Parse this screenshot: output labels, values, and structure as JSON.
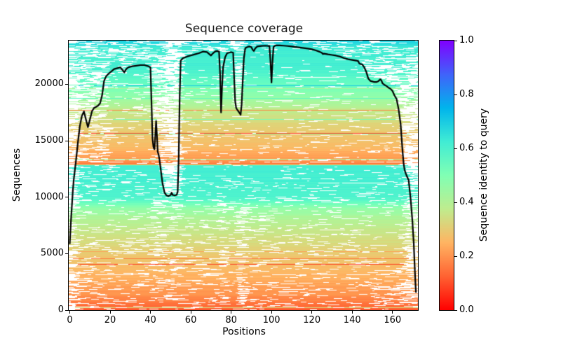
{
  "title": "Sequence coverage",
  "xlabel": "Positions",
  "ylabel": "Sequences",
  "colorbar": {
    "label": "Sequence identity to query",
    "tick_labels": [
      "0.0",
      "0.2",
      "0.4",
      "0.6",
      "0.8",
      "1.0"
    ],
    "tick_values": [
      0.0,
      0.2,
      0.4,
      0.6,
      0.8,
      1.0
    ],
    "cmap_name": "rainbow_r",
    "gradient_stops": [
      {
        "t": 0.0,
        "color": "#ff0000"
      },
      {
        "t": 0.125,
        "color": "#ff6232"
      },
      {
        "t": 0.25,
        "color": "#ffb462"
      },
      {
        "t": 0.375,
        "color": "#bfec8e"
      },
      {
        "t": 0.5,
        "color": "#80ffb4"
      },
      {
        "t": 0.625,
        "color": "#40ecd4"
      },
      {
        "t": 0.75,
        "color": "#00b4ec"
      },
      {
        "t": 0.875,
        "color": "#4062fa"
      },
      {
        "t": 1.0,
        "color": "#8000ff"
      }
    ]
  },
  "axes": {
    "x_tick_values": [
      0,
      20,
      40,
      60,
      80,
      100,
      120,
      140,
      160
    ],
    "x_tick_labels": [
      "0",
      "20",
      "40",
      "60",
      "80",
      "100",
      "120",
      "140",
      "160"
    ],
    "y_tick_values": [
      0,
      5000,
      10000,
      15000,
      20000
    ],
    "y_tick_labels": [
      "0",
      "5000",
      "10000",
      "15000",
      "20000"
    ],
    "line_color": "#000000",
    "background": "#ffffff"
  },
  "chart_data": {
    "type": "heatmap+line",
    "title": "Sequence coverage",
    "xlabel": "Positions",
    "ylabel": "Sequences",
    "xlim": [
      -0.52,
      172.6
    ],
    "ylim": [
      0,
      23870
    ],
    "n_sequences": 23870,
    "n_positions": 173,
    "colorbar_label": "Sequence identity to query",
    "colorbar_range": [
      0.0,
      1.0
    ],
    "coverage_line": [
      [
        0,
        5900
      ],
      [
        0.5,
        7600
      ],
      [
        1,
        9100
      ],
      [
        1.5,
        10500
      ],
      [
        2,
        11600
      ],
      [
        3,
        13100
      ],
      [
        4,
        14800
      ],
      [
        5,
        16300
      ],
      [
        6,
        17200
      ],
      [
        7,
        17600
      ],
      [
        8,
        16900
      ],
      [
        9,
        16200
      ],
      [
        10,
        16900
      ],
      [
        11,
        17600
      ],
      [
        12,
        17900
      ],
      [
        13,
        18000
      ],
      [
        14,
        18100
      ],
      [
        15,
        18300
      ],
      [
        16,
        19000
      ],
      [
        17,
        20300
      ],
      [
        18,
        20700
      ],
      [
        19,
        20900
      ],
      [
        20,
        21050
      ],
      [
        21,
        21200
      ],
      [
        22,
        21350
      ],
      [
        23,
        21400
      ],
      [
        25,
        21500
      ],
      [
        26,
        21300
      ],
      [
        27,
        21050
      ],
      [
        28,
        21350
      ],
      [
        29,
        21500
      ],
      [
        31,
        21600
      ],
      [
        33,
        21650
      ],
      [
        35,
        21700
      ],
      [
        37,
        21700
      ],
      [
        39,
        21600
      ],
      [
        40,
        21500
      ],
      [
        40.5,
        18500
      ],
      [
        41,
        15200
      ],
      [
        41.5,
        14400
      ],
      [
        42,
        14250
      ],
      [
        42.8,
        16750
      ],
      [
        43.2,
        15500
      ],
      [
        43.6,
        14000
      ],
      [
        44,
        13800
      ],
      [
        44.5,
        13300
      ],
      [
        45,
        12600
      ],
      [
        46,
        11200
      ],
      [
        47,
        10400
      ],
      [
        48,
        10150
      ],
      [
        49,
        10100
      ],
      [
        50,
        10200
      ],
      [
        50.5,
        10400
      ],
      [
        51,
        10200
      ],
      [
        52,
        10150
      ],
      [
        53,
        10200
      ],
      [
        53.5,
        10500
      ],
      [
        54,
        13500
      ],
      [
        54.5,
        19000
      ],
      [
        55,
        22100
      ],
      [
        56,
        22300
      ],
      [
        58,
        22450
      ],
      [
        60,
        22550
      ],
      [
        62,
        22650
      ],
      [
        64,
        22750
      ],
      [
        66,
        22900
      ],
      [
        68,
        22850
      ],
      [
        69,
        22700
      ],
      [
        70,
        22550
      ],
      [
        71,
        22750
      ],
      [
        72,
        22900
      ],
      [
        73,
        22950
      ],
      [
        74,
        22900
      ],
      [
        74.5,
        21000
      ],
      [
        75,
        17500
      ],
      [
        75.5,
        19800
      ],
      [
        76,
        21500
      ],
      [
        77,
        22400
      ],
      [
        78,
        22750
      ],
      [
        79,
        22800
      ],
      [
        80,
        22850
      ],
      [
        81,
        22800
      ],
      [
        81.5,
        20500
      ],
      [
        82,
        18500
      ],
      [
        82.5,
        17900
      ],
      [
        83,
        17750
      ],
      [
        84,
        17500
      ],
      [
        84.7,
        17300
      ],
      [
        85.2,
        18200
      ],
      [
        85.8,
        20500
      ],
      [
        86.3,
        22300
      ],
      [
        87,
        23200
      ],
      [
        88,
        23300
      ],
      [
        89,
        23350
      ],
      [
        90,
        23300
      ],
      [
        90.7,
        23050
      ],
      [
        91.3,
        22950
      ],
      [
        92,
        23200
      ],
      [
        93,
        23350
      ],
      [
        95,
        23400
      ],
      [
        97,
        23420
      ],
      [
        99,
        23380
      ],
      [
        99.5,
        22000
      ],
      [
        100,
        20150
      ],
      [
        100.5,
        22000
      ],
      [
        101,
        23300
      ],
      [
        102,
        23450
      ],
      [
        104,
        23440
      ],
      [
        106,
        23420
      ],
      [
        108,
        23390
      ],
      [
        110,
        23350
      ],
      [
        112,
        23310
      ],
      [
        114,
        23260
      ],
      [
        116,
        23210
      ],
      [
        118,
        23160
      ],
      [
        120,
        23100
      ],
      [
        122,
        23000
      ],
      [
        124,
        22870
      ],
      [
        125,
        22780
      ],
      [
        125.5,
        22680
      ],
      [
        126,
        22720
      ],
      [
        128,
        22650
      ],
      [
        130,
        22600
      ],
      [
        132,
        22540
      ],
      [
        134,
        22450
      ],
      [
        136,
        22320
      ],
      [
        138,
        22220
      ],
      [
        140,
        22160
      ],
      [
        142,
        22100
      ],
      [
        143,
        22050
      ],
      [
        143.5,
        21850
      ],
      [
        144,
        21800
      ],
      [
        145,
        21760
      ],
      [
        146,
        21500
      ],
      [
        147,
        21100
      ],
      [
        148,
        20500
      ],
      [
        149,
        20300
      ],
      [
        150,
        20250
      ],
      [
        151,
        20200
      ],
      [
        152,
        20200
      ],
      [
        153,
        20280
      ],
      [
        154,
        20450
      ],
      [
        154.6,
        20300
      ],
      [
        155,
        20100
      ],
      [
        156,
        19950
      ],
      [
        157,
        19850
      ],
      [
        158,
        19700
      ],
      [
        159,
        19600
      ],
      [
        160,
        19400
      ],
      [
        161,
        19000
      ],
      [
        162,
        18700
      ],
      [
        163,
        17800
      ],
      [
        164,
        16500
      ],
      [
        164.6,
        15000
      ],
      [
        165,
        14000
      ],
      [
        165.5,
        13000
      ],
      [
        166,
        12400
      ],
      [
        167,
        11900
      ],
      [
        168,
        11500
      ],
      [
        169,
        9800
      ],
      [
        169.8,
        8000
      ],
      [
        170.5,
        6000
      ],
      [
        171,
        3800
      ],
      [
        171.4,
        2200
      ],
      [
        171.6,
        1600
      ]
    ],
    "identity_profile": [
      [
        0,
        0.1
      ],
      [
        300,
        0.14
      ],
      [
        1200,
        0.19
      ],
      [
        2500,
        0.23
      ],
      [
        4000,
        0.27
      ],
      [
        5500,
        0.31
      ],
      [
        7000,
        0.36
      ],
      [
        8200,
        0.41
      ],
      [
        9000,
        0.46
      ],
      [
        9400,
        0.52
      ],
      [
        9700,
        0.58
      ],
      [
        10200,
        0.6
      ],
      [
        12400,
        0.62
      ],
      [
        12800,
        0.62
      ],
      [
        12900,
        0.16
      ],
      [
        13400,
        0.21
      ],
      [
        14500,
        0.26
      ],
      [
        16000,
        0.3
      ],
      [
        17000,
        0.34
      ],
      [
        18000,
        0.39
      ],
      [
        18800,
        0.45
      ],
      [
        19500,
        0.51
      ],
      [
        20200,
        0.56
      ],
      [
        20900,
        0.59
      ],
      [
        21500,
        0.61
      ],
      [
        22500,
        0.62
      ],
      [
        23300,
        0.63
      ],
      [
        23600,
        0.66
      ],
      [
        23870,
        0.7
      ]
    ],
    "gap_regions": [
      {
        "x": [
          -0.6,
          2.5
        ],
        "s": [
          0,
          23870
        ],
        "p": 0.6
      },
      {
        "x": [
          2.5,
          5
        ],
        "s": [
          0,
          23870
        ],
        "p": 0.35
      },
      {
        "x": [
          5,
          8
        ],
        "s": [
          11000,
          23870
        ],
        "p": 0.2
      },
      {
        "x": [
          4,
          20
        ],
        "s": [
          13500,
          21200
        ],
        "p": 0.38
      },
      {
        "x": [
          20,
          40
        ],
        "s": [
          17000,
          21400
        ],
        "p": 0.12
      },
      {
        "x": [
          40.5,
          47
        ],
        "s": [
          800,
          10200
        ],
        "p": 0.28
      },
      {
        "x": [
          47,
          55.2
        ],
        "s": [
          10300,
          23870
        ],
        "p": 0.68
      },
      {
        "x": [
          47,
          55.2
        ],
        "s": [
          800,
          10300
        ],
        "p": 0.26
      },
      {
        "x": [
          74.5,
          77.5
        ],
        "s": [
          500,
          9500
        ],
        "p": 0.4
      },
      {
        "x": [
          83.5,
          87.5
        ],
        "s": [
          500,
          9500
        ],
        "p": 0.42
      },
      {
        "x": [
          95,
          100.5
        ],
        "s": [
          1500,
          9000
        ],
        "p": 0.16
      },
      {
        "x": [
          55,
          74
        ],
        "s": [
          13000,
          20500
        ],
        "p": 0.09
      },
      {
        "x": [
          150,
          166
        ],
        "s": [
          0,
          2600
        ],
        "p": 0.28
      },
      {
        "x": [
          165.5,
          173
        ],
        "s": [
          0,
          12000
        ],
        "p": 0.45
      },
      {
        "x": [
          165.5,
          173
        ],
        "s": [
          12000,
          20500
        ],
        "p": 0.72
      },
      {
        "x": [
          169,
          173
        ],
        "s": [
          0,
          8000
        ],
        "p": 0.6
      }
    ]
  }
}
